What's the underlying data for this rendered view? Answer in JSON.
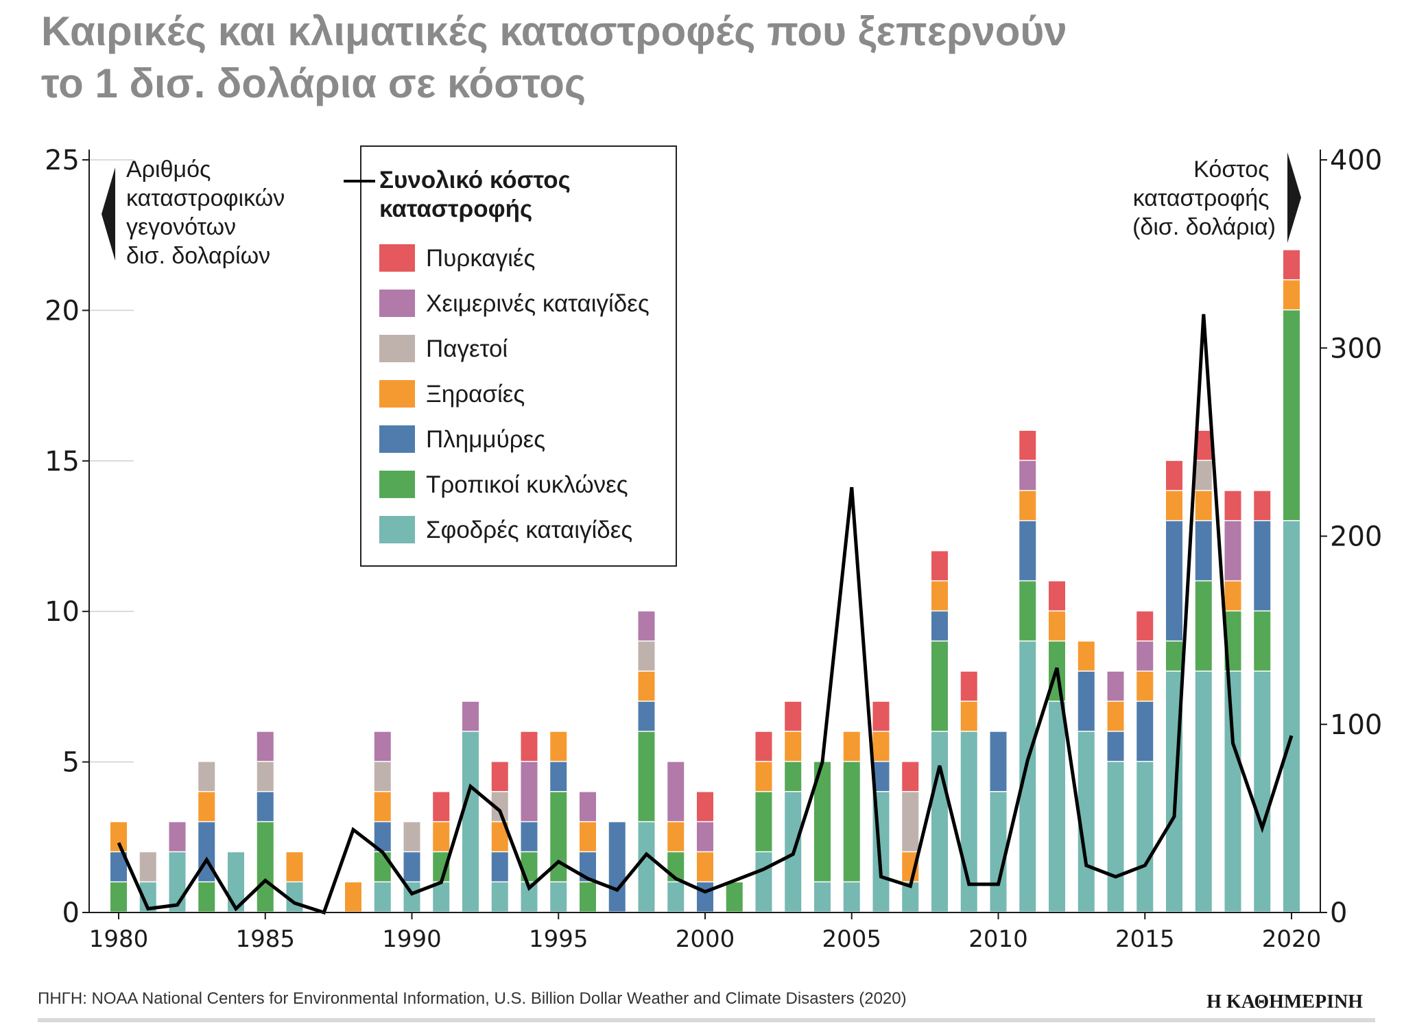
{
  "title": {
    "line1": "Καιρικές και κλιματικές καταστροφές που ξεπερνούν",
    "line2": "το 1 δισ. δολάρια σε κόστος"
  },
  "left_axis_note": [
    "Αριθμός",
    "καταστροφικών",
    "γεγονότων",
    "δισ. δολαρίων"
  ],
  "right_axis_note": [
    "Κόστος",
    "καταστροφής",
    "(δισ. δολάρια)"
  ],
  "legend": {
    "total_line_line1": "Συνολικό κόστος",
    "total_line_line2": "καταστροφής",
    "items": [
      {
        "label": "Πυρκαγιές",
        "color": "#e5585d"
      },
      {
        "label": "Χειμερινές καταιγίδες",
        "color": "#b17aa8"
      },
      {
        "label": "Παγετοί",
        "color": "#bfb2ad"
      },
      {
        "label": "Ξηρασίες",
        "color": "#f59a30"
      },
      {
        "label": "Πλημμύρες",
        "color": "#4f7cad"
      },
      {
        "label": "Τροπικοί κυκλώνες",
        "color": "#55a856"
      },
      {
        "label": "Σφοδρές καταιγίδες",
        "color": "#76b8b2"
      }
    ]
  },
  "source": "ΠΗΓΗ: NOAA National Centers for Environmental Information, U.S. Billion Dollar Weather and Climate Disasters (2020)",
  "brand": "Η ΚΑΘΗΜΕΡΙΝΗ",
  "chart_data": {
    "type": "bar",
    "stacked": true,
    "xlabel": "",
    "ylabel_left": "Αριθμός καταστροφικών γεγονότων δισ. δολαρίων",
    "ylabel_right": "Κόστος καταστροφής (δισ. δολάρια)",
    "ylim_left": [
      0,
      25
    ],
    "ylim_right": [
      0,
      400
    ],
    "left_ticks": [
      0,
      5,
      10,
      15,
      20,
      25
    ],
    "right_ticks": [
      0,
      100,
      200,
      300,
      400
    ],
    "x_ticks": [
      1980,
      1985,
      1990,
      1995,
      2000,
      2005,
      2010,
      2015,
      2020
    ],
    "years": [
      1980,
      1981,
      1982,
      1983,
      1984,
      1985,
      1986,
      1987,
      1988,
      1989,
      1990,
      1991,
      1992,
      1993,
      1994,
      1995,
      1996,
      1997,
      1998,
      1999,
      2000,
      2001,
      2002,
      2003,
      2004,
      2005,
      2006,
      2007,
      2008,
      2009,
      2010,
      2011,
      2012,
      2013,
      2014,
      2015,
      2016,
      2017,
      2018,
      2019,
      2020
    ],
    "series": [
      {
        "name": "Σφοδρές καταιγίδες",
        "color": "#76b8b2",
        "values": [
          0,
          1,
          2,
          0,
          2,
          0,
          1,
          0,
          0,
          1,
          1,
          1,
          6,
          1,
          1,
          1,
          0,
          0,
          3,
          1,
          0,
          0,
          2,
          4,
          1,
          1,
          4,
          1,
          6,
          6,
          4,
          9,
          7,
          6,
          5,
          5,
          8,
          8,
          8,
          8,
          13
        ]
      },
      {
        "name": "Τροπικοί κυκλώνες",
        "color": "#55a856",
        "values": [
          1,
          0,
          0,
          1,
          0,
          3,
          0,
          0,
          0,
          1,
          0,
          1,
          0,
          0,
          1,
          3,
          1,
          0,
          3,
          1,
          0,
          1,
          2,
          1,
          4,
          4,
          0,
          0,
          3,
          0,
          0,
          2,
          2,
          0,
          0,
          0,
          1,
          3,
          2,
          2,
          7
        ]
      },
      {
        "name": "Πλημμύρες",
        "color": "#4f7cad",
        "values": [
          1,
          0,
          0,
          2,
          0,
          1,
          0,
          0,
          0,
          1,
          1,
          0,
          0,
          1,
          1,
          1,
          1,
          3,
          1,
          0,
          1,
          0,
          0,
          0,
          0,
          0,
          1,
          0,
          1,
          0,
          2,
          2,
          0,
          2,
          1,
          2,
          4,
          2,
          0,
          3,
          0
        ]
      },
      {
        "name": "Ξηρασίες",
        "color": "#f59a30",
        "values": [
          1,
          0,
          0,
          1,
          0,
          0,
          1,
          0,
          1,
          1,
          0,
          1,
          0,
          1,
          0,
          1,
          1,
          0,
          1,
          1,
          1,
          0,
          1,
          1,
          0,
          1,
          1,
          1,
          1,
          1,
          0,
          1,
          1,
          1,
          1,
          1,
          1,
          1,
          1,
          0,
          1
        ]
      },
      {
        "name": "Παγετοί",
        "color": "#bfb2ad",
        "values": [
          0,
          1,
          0,
          1,
          0,
          1,
          0,
          0,
          0,
          1,
          1,
          0,
          0,
          1,
          0,
          0,
          0,
          0,
          1,
          0,
          0,
          0,
          0,
          0,
          0,
          0,
          0,
          2,
          0,
          0,
          0,
          0,
          0,
          0,
          0,
          0,
          0,
          1,
          0,
          0,
          0
        ]
      },
      {
        "name": "Χειμερινές καταιγίδες",
        "color": "#b17aa8",
        "values": [
          0,
          0,
          1,
          0,
          0,
          1,
          0,
          0,
          0,
          1,
          0,
          0,
          1,
          0,
          2,
          0,
          1,
          0,
          1,
          2,
          1,
          0,
          0,
          0,
          0,
          0,
          0,
          0,
          0,
          0,
          0,
          1,
          0,
          0,
          1,
          1,
          0,
          0,
          2,
          0,
          0
        ]
      },
      {
        "name": "Πυρκαγιές",
        "color": "#e5585d",
        "values": [
          0,
          0,
          0,
          0,
          0,
          0,
          0,
          0,
          0,
          0,
          0,
          1,
          0,
          1,
          1,
          0,
          0,
          0,
          0,
          0,
          1,
          0,
          1,
          1,
          0,
          0,
          1,
          1,
          1,
          1,
          0,
          1,
          1,
          0,
          0,
          1,
          1,
          1,
          1,
          1,
          1
        ]
      }
    ],
    "line": {
      "name": "Συνολικό κόστος καταστροφής",
      "color": "#000000",
      "values": [
        37,
        2,
        4,
        28,
        2,
        17,
        5,
        0,
        44,
        32,
        10,
        16,
        67,
        54,
        13,
        27,
        18,
        12,
        31,
        18,
        11,
        17,
        23,
        31,
        80,
        226,
        19,
        14,
        78,
        15,
        15,
        81,
        130,
        25,
        19,
        25,
        51,
        318,
        90,
        45,
        94
      ]
    }
  }
}
